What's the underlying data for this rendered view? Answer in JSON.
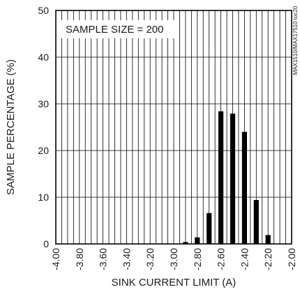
{
  "chart_data": {
    "type": "bar",
    "xlabel": "SINK CURRENT LIMIT (A)",
    "ylabel": "SAMPLE PERCENTAGE (%)",
    "annotation": "SAMPLE SIZE = 200",
    "side_note": "MAX1510/MAX17510 toc20",
    "xlim": [
      -4.0,
      -2.0
    ],
    "ylim": [
      0,
      50
    ],
    "x_ticks": [
      "-4.00",
      "-3.80",
      "-3.60",
      "-3.40",
      "-3.20",
      "-3.00",
      "-2.80",
      "-2.60",
      "-2.40",
      "-2.20",
      "-2.00"
    ],
    "y_ticks": [
      "0",
      "10",
      "20",
      "30",
      "40",
      "50"
    ],
    "grid": true,
    "bar_color": "#000000",
    "bars": [
      {
        "x": -2.9,
        "value": 0.4
      },
      {
        "x": -2.8,
        "value": 1.4
      },
      {
        "x": -2.7,
        "value": 6.6
      },
      {
        "x": -2.6,
        "value": 28.4
      },
      {
        "x": -2.5,
        "value": 27.9
      },
      {
        "x": -2.4,
        "value": 24.0
      },
      {
        "x": -2.3,
        "value": 9.4
      },
      {
        "x": -2.2,
        "value": 1.9
      }
    ]
  }
}
